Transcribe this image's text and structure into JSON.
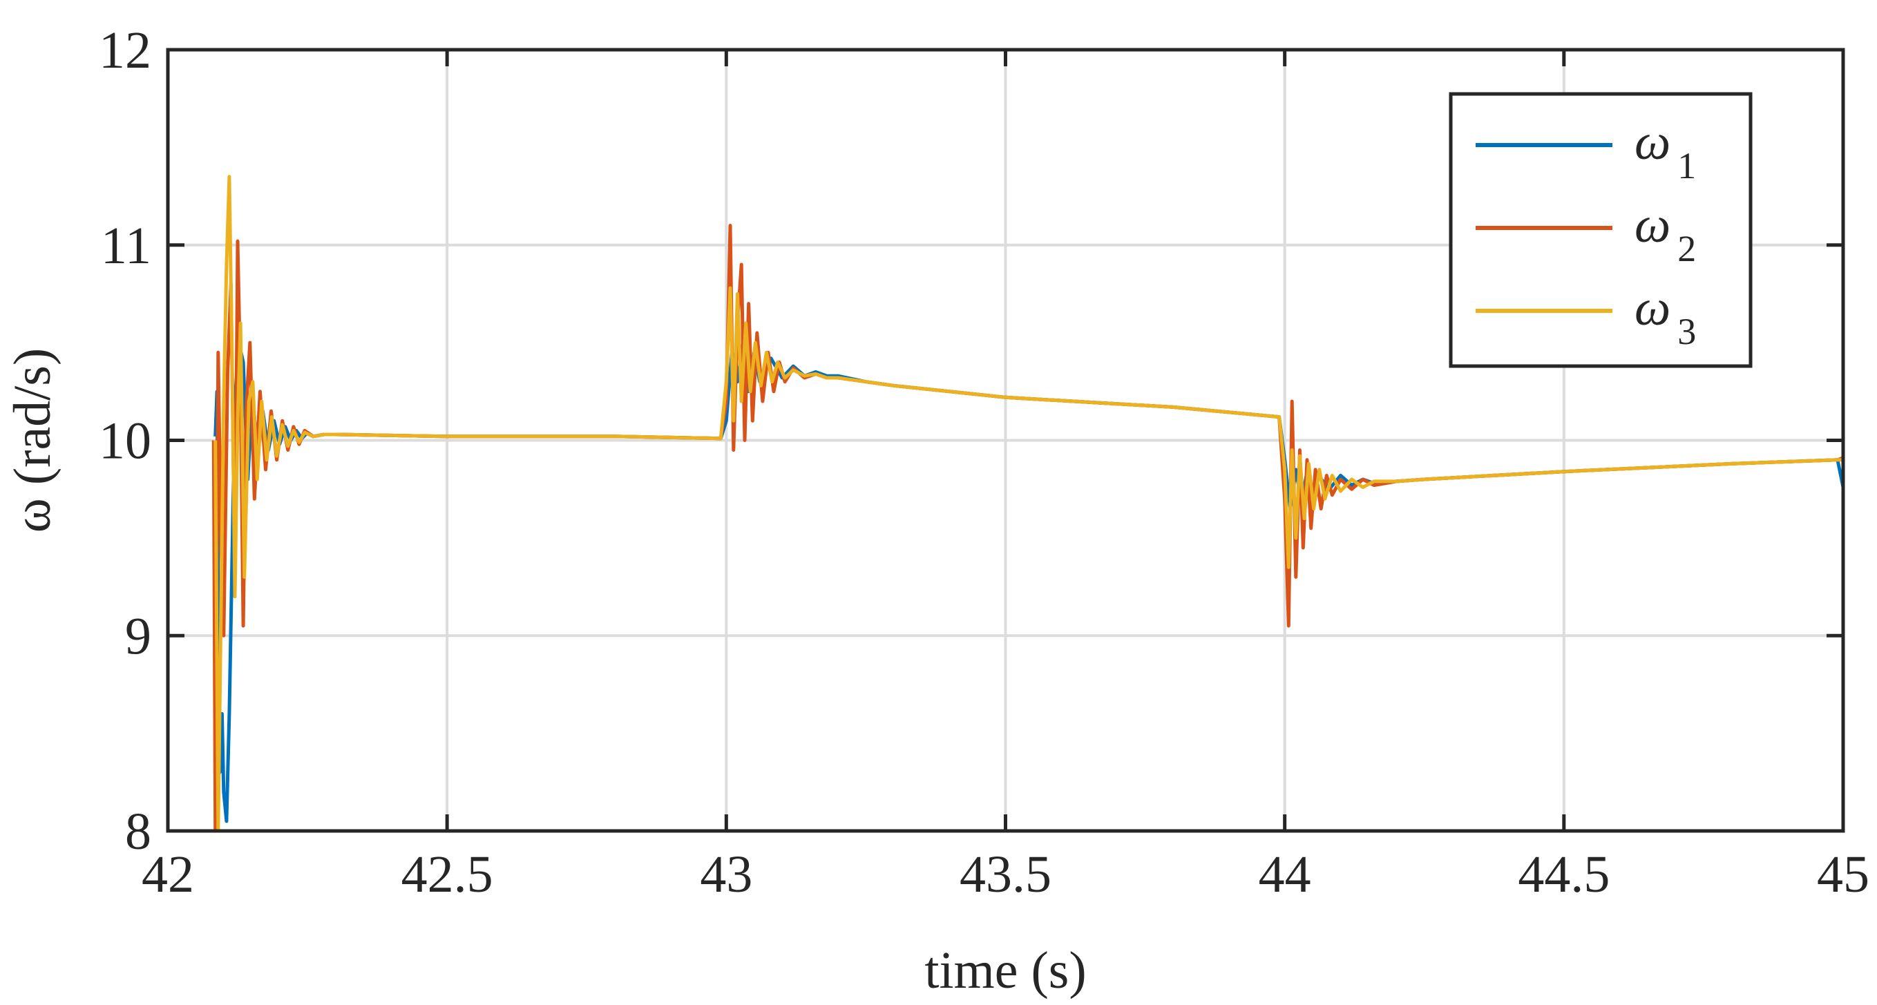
{
  "chart_data": {
    "type": "line",
    "title": "",
    "xlabel": "time (s)",
    "ylabel": "ω (rad/s)",
    "xlim": [
      42,
      45
    ],
    "ylim": [
      8,
      12
    ],
    "x_ticks": [
      42,
      42.5,
      43,
      43.5,
      44,
      44.5,
      45
    ],
    "x_tick_labels": [
      "42",
      "42.5",
      "43",
      "43.5",
      "44",
      "44.5",
      "45"
    ],
    "y_ticks": [
      8,
      9,
      10,
      11,
      12
    ],
    "y_tick_labels": [
      "8",
      "9",
      "10",
      "11",
      "12"
    ],
    "grid": true,
    "legend_position": "top-right",
    "series": [
      {
        "name": "ω1",
        "color": "#0072BD",
        "x": [
          42.085,
          42.088,
          42.09,
          42.093,
          42.097,
          42.1,
          42.105,
          42.11,
          42.115,
          42.12,
          42.127,
          42.135,
          42.143,
          42.152,
          42.16,
          42.17,
          42.18,
          42.19,
          42.2,
          42.21,
          42.22,
          42.23,
          42.24,
          42.25,
          42.26,
          42.28,
          42.3,
          42.5,
          42.8,
          42.99,
          43.0,
          43.01,
          43.02,
          43.03,
          43.04,
          43.05,
          43.06,
          43.08,
          43.1,
          43.12,
          43.14,
          43.16,
          43.18,
          43.2,
          43.25,
          43.3,
          43.5,
          43.8,
          43.99,
          44.0,
          44.01,
          44.02,
          44.03,
          44.04,
          44.05,
          44.06,
          44.08,
          44.1,
          44.12,
          44.14,
          44.16,
          44.2,
          44.25,
          44.5,
          44.8,
          44.99,
          45.0
        ],
        "y": [
          10.02,
          10.25,
          9.2,
          8.3,
          8.6,
          8.2,
          8.05,
          8.6,
          9.4,
          10.2,
          10.5,
          10.4,
          9.8,
          10.25,
          9.9,
          10.15,
          9.95,
          10.1,
          9.98,
          10.07,
          10.0,
          10.05,
          10.01,
          10.04,
          10.02,
          10.03,
          10.03,
          10.02,
          10.02,
          10.01,
          10.1,
          10.45,
          10.3,
          10.5,
          10.25,
          10.45,
          10.3,
          10.42,
          10.32,
          10.38,
          10.33,
          10.35,
          10.33,
          10.33,
          10.3,
          10.28,
          10.22,
          10.17,
          10.12,
          9.9,
          9.65,
          9.85,
          9.68,
          9.84,
          9.72,
          9.82,
          9.75,
          9.82,
          9.77,
          9.8,
          9.78,
          9.79,
          9.8,
          9.84,
          9.88,
          9.9,
          9.76
        ]
      },
      {
        "name": "ω2",
        "color": "#D95319",
        "x": [
          42.082,
          42.085,
          42.09,
          42.095,
          42.1,
          42.107,
          42.113,
          42.12,
          42.125,
          42.13,
          42.135,
          42.14,
          42.147,
          42.155,
          42.165,
          42.175,
          42.185,
          42.195,
          42.205,
          42.215,
          42.225,
          42.235,
          42.245,
          42.26,
          42.28,
          42.3,
          42.5,
          42.8,
          42.99,
          43.0,
          43.007,
          43.013,
          43.02,
          43.027,
          43.033,
          43.04,
          43.047,
          43.055,
          43.065,
          43.075,
          43.085,
          43.095,
          43.105,
          43.12,
          43.14,
          43.16,
          43.18,
          43.2,
          43.25,
          43.3,
          43.5,
          43.8,
          43.99,
          44.0,
          44.007,
          44.013,
          44.02,
          44.027,
          44.033,
          44.04,
          44.047,
          44.055,
          44.065,
          44.075,
          44.085,
          44.1,
          44.12,
          44.14,
          44.16,
          44.2,
          44.25,
          44.5,
          44.8,
          44.99,
          45.0
        ],
        "y": [
          10.0,
          8.0,
          10.45,
          9.5,
          9.0,
          10.35,
          10.8,
          9.3,
          11.02,
          10.3,
          9.05,
          10.15,
          10.5,
          9.7,
          10.25,
          9.85,
          10.15,
          9.9,
          10.1,
          9.95,
          10.07,
          9.98,
          10.05,
          10.02,
          10.03,
          10.03,
          10.02,
          10.02,
          10.01,
          10.2,
          11.1,
          9.95,
          10.6,
          10.9,
          10.0,
          10.7,
          10.1,
          10.55,
          10.2,
          10.45,
          10.25,
          10.4,
          10.3,
          10.37,
          10.32,
          10.34,
          10.32,
          10.32,
          10.3,
          10.28,
          10.22,
          10.17,
          10.12,
          9.7,
          9.05,
          10.2,
          9.3,
          9.95,
          9.45,
          9.9,
          9.55,
          9.85,
          9.65,
          9.82,
          9.72,
          9.8,
          9.75,
          9.8,
          9.77,
          9.79,
          9.8,
          9.84,
          9.88,
          9.9,
          9.91
        ]
      },
      {
        "name": "ω3",
        "color": "#EDB120",
        "x": [
          42.085,
          42.09,
          42.095,
          42.1,
          42.105,
          42.11,
          42.115,
          42.12,
          42.125,
          42.13,
          42.137,
          42.145,
          42.152,
          42.16,
          42.168,
          42.177,
          42.186,
          42.195,
          42.205,
          42.215,
          42.225,
          42.235,
          42.245,
          42.26,
          42.28,
          42.3,
          42.5,
          42.8,
          42.99,
          43.0,
          43.007,
          43.013,
          43.02,
          43.027,
          43.035,
          43.043,
          43.052,
          43.062,
          43.072,
          43.082,
          43.092,
          43.105,
          43.12,
          43.14,
          43.16,
          43.18,
          43.2,
          43.25,
          43.3,
          43.5,
          43.8,
          43.99,
          44.0,
          44.007,
          44.013,
          44.02,
          44.027,
          44.035,
          44.043,
          44.052,
          44.062,
          44.072,
          44.085,
          44.1,
          44.12,
          44.14,
          44.16,
          44.2,
          44.25,
          44.5,
          44.8,
          44.99,
          45.0
        ],
        "y": [
          10.0,
          8.0,
          9.1,
          10.2,
          10.9,
          11.35,
          10.4,
          9.2,
          10.1,
          10.6,
          9.3,
          10.2,
          10.3,
          9.8,
          10.2,
          9.9,
          10.12,
          9.92,
          10.08,
          9.97,
          10.05,
          9.99,
          10.04,
          10.02,
          10.03,
          10.03,
          10.02,
          10.02,
          10.01,
          10.3,
          10.78,
          10.1,
          10.75,
          10.2,
          10.6,
          10.25,
          10.5,
          10.28,
          10.45,
          10.3,
          10.4,
          10.32,
          10.36,
          10.33,
          10.34,
          10.32,
          10.32,
          10.3,
          10.28,
          10.22,
          10.17,
          10.12,
          9.85,
          9.35,
          9.95,
          9.5,
          9.92,
          9.6,
          9.88,
          9.65,
          9.85,
          9.7,
          9.82,
          9.74,
          9.8,
          9.76,
          9.79,
          9.79,
          9.8,
          9.84,
          9.88,
          9.9,
          9.9
        ]
      }
    ]
  },
  "legend": {
    "entries": [
      {
        "symbol": "ω",
        "sub": "1"
      },
      {
        "symbol": "ω",
        "sub": "2"
      },
      {
        "symbol": "ω",
        "sub": "3"
      }
    ]
  }
}
